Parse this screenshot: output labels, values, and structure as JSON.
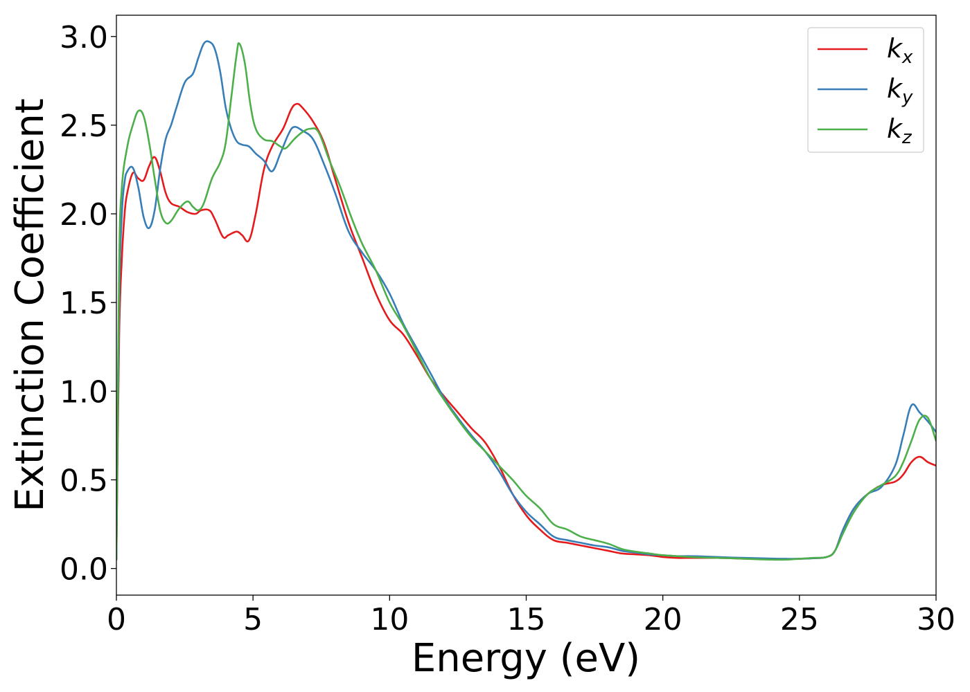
{
  "chart_data": {
    "type": "line",
    "xlabel": "Energy (eV)",
    "ylabel": "Extinction Coefficient",
    "xlim": [
      0,
      30
    ],
    "ylim": [
      -0.15,
      3.12
    ],
    "xticks": [
      0,
      5,
      10,
      15,
      20,
      25,
      30
    ],
    "xtick_labels": [
      "0",
      "5",
      "10",
      "15",
      "20",
      "25",
      "30"
    ],
    "yticks": [
      0.0,
      0.5,
      1.0,
      1.5,
      2.0,
      2.5,
      3.0
    ],
    "ytick_labels": [
      "0.0",
      "0.5",
      "1.0",
      "1.5",
      "2.0",
      "2.5",
      "3.0"
    ],
    "grid": false,
    "legend_position": "top-right",
    "series": [
      {
        "name": "k",
        "subscript": "x",
        "color": "#e41a1c",
        "x": [
          0,
          0.1,
          0.2,
          0.3,
          0.4,
          0.6,
          0.8,
          1.0,
          1.2,
          1.4,
          1.6,
          1.8,
          2.0,
          2.3,
          2.6,
          2.9,
          3.1,
          3.4,
          3.6,
          3.9,
          4.1,
          4.4,
          4.6,
          4.85,
          5.1,
          5.4,
          5.7,
          6.1,
          6.4,
          6.6,
          6.8,
          7.2,
          7.6,
          8.0,
          8.5,
          9.0,
          9.5,
          10.0,
          10.5,
          11.0,
          11.5,
          12.0,
          12.5,
          13.0,
          13.5,
          14.0,
          14.5,
          15.0,
          15.5,
          16.0,
          16.5,
          17.0,
          17.5,
          18.0,
          18.5,
          19.0,
          19.5,
          20.0,
          20.5,
          21.0,
          21.5,
          22.0,
          22.5,
          23.0,
          23.5,
          24.0,
          24.5,
          25.0,
          25.5,
          26.0,
          26.3,
          26.6,
          27.0,
          27.5,
          28.0,
          28.5,
          28.8,
          29.1,
          29.4,
          29.7,
          30.0
        ],
        "y": [
          0.05,
          1.3,
          1.75,
          2.0,
          2.12,
          2.23,
          2.2,
          2.19,
          2.27,
          2.32,
          2.24,
          2.12,
          2.06,
          2.04,
          2.01,
          2.0,
          2.02,
          2.02,
          1.97,
          1.87,
          1.88,
          1.9,
          1.88,
          1.85,
          2.0,
          2.25,
          2.38,
          2.48,
          2.59,
          2.62,
          2.6,
          2.52,
          2.4,
          2.2,
          1.95,
          1.75,
          1.55,
          1.4,
          1.32,
          1.2,
          1.07,
          0.97,
          0.88,
          0.79,
          0.71,
          0.58,
          0.42,
          0.3,
          0.22,
          0.16,
          0.145,
          0.13,
          0.115,
          0.1,
          0.085,
          0.08,
          0.075,
          0.065,
          0.06,
          0.06,
          0.06,
          0.06,
          0.058,
          0.055,
          0.053,
          0.052,
          0.053,
          0.055,
          0.058,
          0.065,
          0.1,
          0.22,
          0.34,
          0.42,
          0.47,
          0.49,
          0.53,
          0.6,
          0.63,
          0.6,
          0.58
        ]
      },
      {
        "name": "k",
        "subscript": "y",
        "color": "#377eb8",
        "x": [
          0,
          0.1,
          0.2,
          0.3,
          0.4,
          0.6,
          0.8,
          1.0,
          1.2,
          1.4,
          1.6,
          1.8,
          2.0,
          2.2,
          2.5,
          2.8,
          3.0,
          3.2,
          3.4,
          3.6,
          3.8,
          4.0,
          4.2,
          4.4,
          4.6,
          4.85,
          5.1,
          5.4,
          5.7,
          6.0,
          6.3,
          6.5,
          6.8,
          7.2,
          7.6,
          8.0,
          8.5,
          9.0,
          9.5,
          10.0,
          10.5,
          11.0,
          11.5,
          12.0,
          12.5,
          13.0,
          13.5,
          14.0,
          14.5,
          15.0,
          15.5,
          16.0,
          16.5,
          17.0,
          17.5,
          18.0,
          18.5,
          19.0,
          19.5,
          20.0,
          20.5,
          21.0,
          21.5,
          22.0,
          22.5,
          23.0,
          23.5,
          24.0,
          24.5,
          25.0,
          25.5,
          26.0,
          26.3,
          26.6,
          27.0,
          27.5,
          28.0,
          28.5,
          28.8,
          29.1,
          29.4,
          29.7,
          30.0
        ],
        "y": [
          0.05,
          1.5,
          2.0,
          2.18,
          2.24,
          2.26,
          2.15,
          1.98,
          1.92,
          2.02,
          2.25,
          2.42,
          2.5,
          2.6,
          2.74,
          2.79,
          2.88,
          2.96,
          2.97,
          2.93,
          2.8,
          2.6,
          2.48,
          2.41,
          2.39,
          2.38,
          2.34,
          2.3,
          2.24,
          2.34,
          2.45,
          2.49,
          2.47,
          2.42,
          2.28,
          2.12,
          1.9,
          1.78,
          1.68,
          1.55,
          1.38,
          1.24,
          1.1,
          0.96,
          0.85,
          0.75,
          0.66,
          0.55,
          0.42,
          0.32,
          0.25,
          0.18,
          0.16,
          0.145,
          0.13,
          0.12,
          0.1,
          0.09,
          0.08,
          0.075,
          0.07,
          0.07,
          0.068,
          0.065,
          0.062,
          0.06,
          0.058,
          0.056,
          0.055,
          0.055,
          0.058,
          0.065,
          0.1,
          0.22,
          0.34,
          0.42,
          0.46,
          0.58,
          0.75,
          0.92,
          0.88,
          0.83,
          0.77
        ]
      },
      {
        "name": "k",
        "subscript": "z",
        "color": "#4daf4a",
        "x": [
          0,
          0.1,
          0.2,
          0.4,
          0.6,
          0.8,
          1.0,
          1.2,
          1.4,
          1.6,
          1.8,
          2.0,
          2.3,
          2.6,
          2.8,
          3.0,
          3.2,
          3.5,
          3.8,
          4.0,
          4.2,
          4.4,
          4.5,
          4.7,
          4.9,
          5.1,
          5.4,
          5.7,
          6.0,
          6.2,
          6.5,
          6.8,
          7.1,
          7.4,
          7.8,
          8.2,
          8.6,
          9.0,
          9.5,
          10.0,
          10.5,
          11.0,
          11.5,
          12.0,
          12.5,
          13.0,
          13.5,
          14.0,
          14.5,
          15.0,
          15.5,
          16.0,
          16.5,
          17.0,
          17.5,
          18.0,
          18.5,
          19.0,
          19.5,
          20.0,
          20.5,
          21.0,
          21.5,
          22.0,
          22.5,
          23.0,
          23.5,
          24.0,
          24.5,
          25.0,
          25.5,
          26.0,
          26.3,
          26.6,
          27.0,
          27.5,
          28.0,
          28.5,
          28.8,
          29.1,
          29.4,
          29.7,
          30.0
        ],
        "y": [
          0.05,
          1.7,
          2.15,
          2.38,
          2.5,
          2.58,
          2.55,
          2.4,
          2.2,
          2.02,
          1.95,
          1.96,
          2.03,
          2.07,
          2.04,
          2.02,
          2.06,
          2.2,
          2.29,
          2.4,
          2.65,
          2.9,
          2.96,
          2.85,
          2.62,
          2.48,
          2.42,
          2.41,
          2.38,
          2.37,
          2.42,
          2.46,
          2.48,
          2.46,
          2.3,
          2.15,
          1.98,
          1.83,
          1.68,
          1.5,
          1.37,
          1.22,
          1.07,
          0.95,
          0.84,
          0.74,
          0.66,
          0.58,
          0.5,
          0.41,
          0.34,
          0.25,
          0.22,
          0.18,
          0.16,
          0.14,
          0.11,
          0.095,
          0.085,
          0.075,
          0.07,
          0.065,
          0.062,
          0.06,
          0.058,
          0.055,
          0.052,
          0.05,
          0.05,
          0.055,
          0.06,
          0.065,
          0.1,
          0.2,
          0.32,
          0.42,
          0.47,
          0.52,
          0.6,
          0.72,
          0.84,
          0.85,
          0.72
        ]
      }
    ]
  }
}
